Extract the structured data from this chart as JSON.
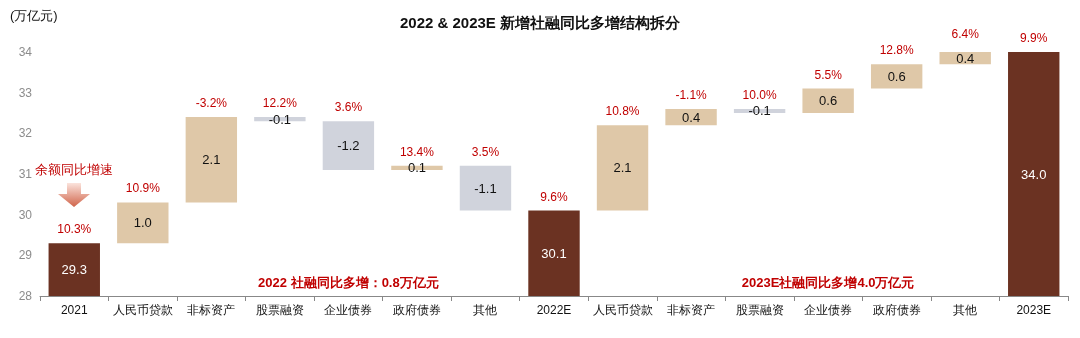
{
  "chart_data": {
    "type": "bar",
    "title": "2022 & 2023E 新增社融同比多增结构拆分",
    "ylabel": "(万亿元)",
    "categories": [
      "2021",
      "人民币贷款",
      "非标资产",
      "股票融资",
      "企业债券",
      "政府债券",
      "其他",
      "2022E",
      "人民币贷款",
      "非标资产",
      "股票融资",
      "企业债券",
      "政府债券",
      "其他",
      "2023E"
    ],
    "values": [
      29.3,
      1.0,
      2.1,
      -0.1,
      -1.2,
      0.1,
      -1.1,
      30.1,
      2.1,
      0.4,
      -0.1,
      0.6,
      0.6,
      0.4,
      34.0
    ],
    "value_labels": [
      "29.3",
      "1.0",
      "2.1",
      "-0.1",
      "-1.2",
      "0.1",
      "-1.1",
      "30.1",
      "2.1",
      "0.4",
      "-0.1",
      "0.6",
      "0.6",
      "0.4",
      "34.0"
    ],
    "base": [
      0,
      29.3,
      30.3,
      32.4,
      32.3,
      31.1,
      31.2,
      0,
      30.1,
      32.2,
      32.6,
      32.5,
      33.1,
      33.7,
      0
    ],
    "colors": [
      "#6b3222",
      "#dfc8a8",
      "#dfc8a8",
      "#d0d3dc",
      "#d0d3dc",
      "#dfc8a8",
      "#d0d3dc",
      "#6b3222",
      "#dfc8a8",
      "#dfc8a8",
      "#d0d3dc",
      "#dfc8a8",
      "#dfc8a8",
      "#dfc8a8",
      "#6b3222"
    ],
    "ylim": [
      28,
      34
    ],
    "yticks": [
      28,
      29,
      30,
      31,
      32,
      33,
      34
    ],
    "grid": false,
    "annotations": [
      "余额同比增速",
      "2022 社融同比多增：0.8万亿元",
      "2023E社融同比多增4.0万亿元",
      "10.3%",
      "10.9%",
      "-3.2%",
      "12.2%",
      "3.6%",
      "13.4%",
      "3.5%",
      "9.6%",
      "10.8%",
      "-1.1%",
      "10.0%",
      "5.5%",
      "12.8%",
      "6.4%",
      "9.9%"
    ]
  }
}
